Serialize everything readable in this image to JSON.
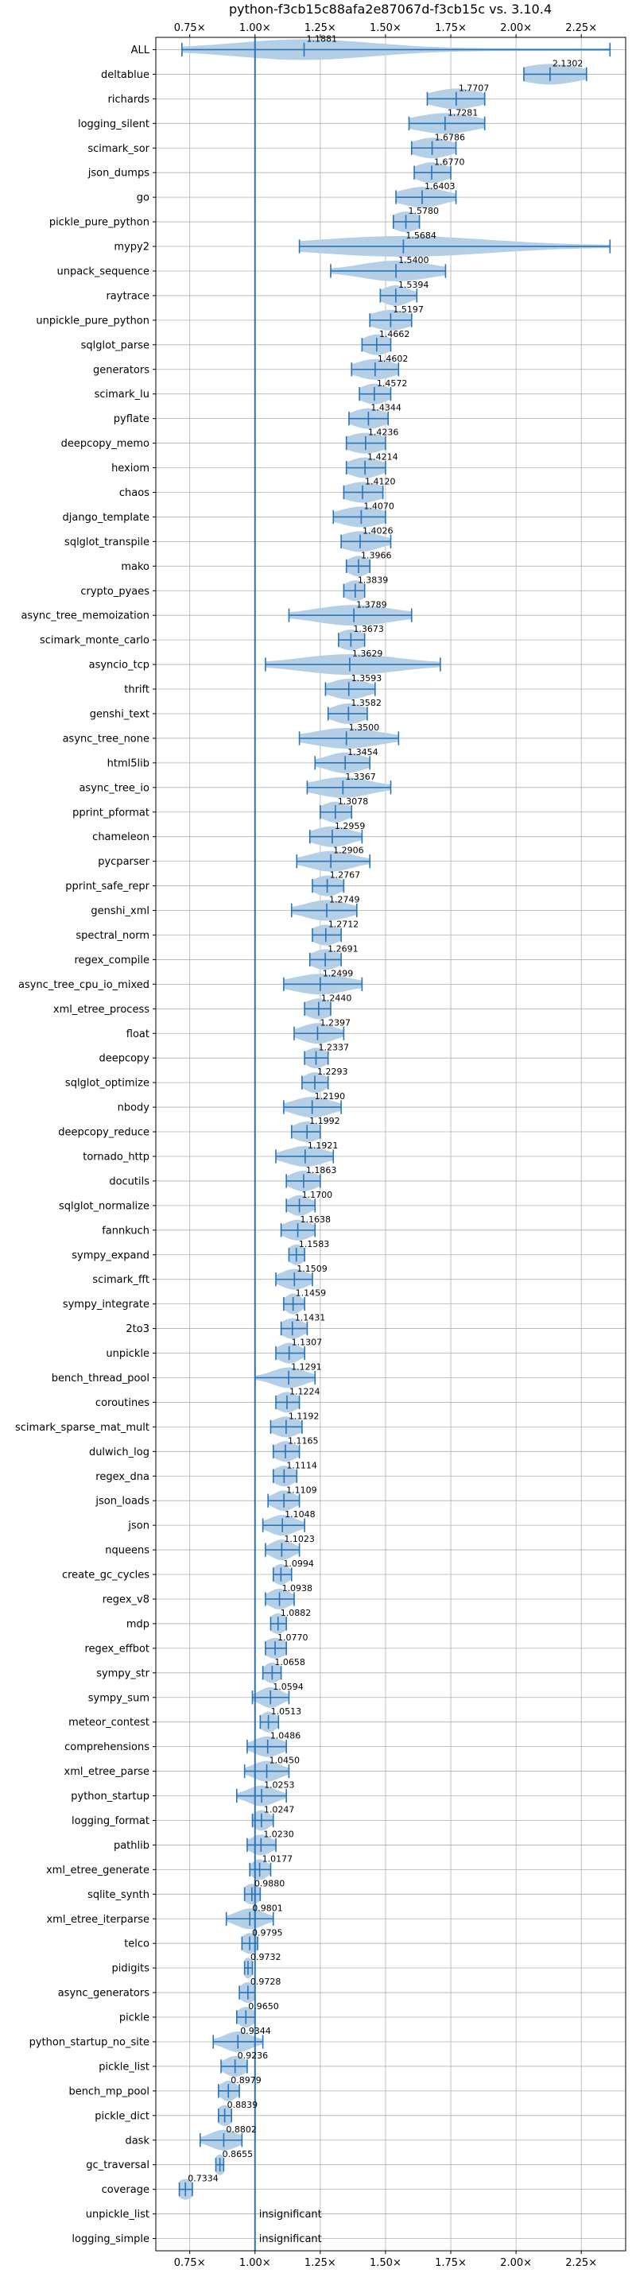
{
  "chart_data": {
    "type": "violin",
    "title": "python-f3cb15c88afa2e87067d-f3cb15c vs. 3.10.4",
    "xlabel": "",
    "ylabel": "",
    "xlim": [
      0.62,
      2.42
    ],
    "xticks": [
      0.75,
      1.0,
      1.25,
      1.5,
      1.75,
      2.0,
      2.25
    ],
    "xtick_labels": [
      "0.75×",
      "1.00×",
      "1.25×",
      "1.50×",
      "1.75×",
      "2.00×",
      "2.25×"
    ],
    "baseline": 1.0,
    "grid": true,
    "colors": {
      "violin": "#b4cfe6",
      "line": "#2a74b5",
      "grid": "#b0b0b0"
    },
    "rows": [
      {
        "name": "ALL",
        "label": "1.1881",
        "mean": 1.1881,
        "min": 0.72,
        "max": 2.36,
        "spread": 0.26
      },
      {
        "name": "deltablue",
        "label": "2.1302",
        "mean": 2.1302,
        "min": 2.03,
        "max": 2.27,
        "spread": 0.11
      },
      {
        "name": "richards",
        "label": "1.7707",
        "mean": 1.7707,
        "min": 1.66,
        "max": 1.88,
        "spread": 0.09
      },
      {
        "name": "logging_silent",
        "label": "1.7281",
        "mean": 1.7281,
        "min": 1.59,
        "max": 1.88,
        "spread": 0.11
      },
      {
        "name": "scimark_sor",
        "label": "1.6786",
        "mean": 1.6786,
        "min": 1.6,
        "max": 1.77,
        "spread": 0.07
      },
      {
        "name": "json_dumps",
        "label": "1.6770",
        "mean": 1.677,
        "min": 1.61,
        "max": 1.75,
        "spread": 0.06
      },
      {
        "name": "go",
        "label": "1.6403",
        "mean": 1.6403,
        "min": 1.54,
        "max": 1.77,
        "spread": 0.08
      },
      {
        "name": "pickle_pure_python",
        "label": "1.5780",
        "mean": 1.578,
        "min": 1.53,
        "max": 1.63,
        "spread": 0.05
      },
      {
        "name": "mypy2",
        "label": "1.5684",
        "mean": 1.5684,
        "min": 1.17,
        "max": 2.36,
        "spread": 0.32
      },
      {
        "name": "unpack_sequence",
        "label": "1.5400",
        "mean": 1.54,
        "min": 1.29,
        "max": 1.73,
        "spread": 0.13
      },
      {
        "name": "raytrace",
        "label": "1.5394",
        "mean": 1.5394,
        "min": 1.48,
        "max": 1.62,
        "spread": 0.05
      },
      {
        "name": "unpickle_pure_python",
        "label": "1.5197",
        "mean": 1.5197,
        "min": 1.44,
        "max": 1.6,
        "spread": 0.07
      },
      {
        "name": "sqlglot_parse",
        "label": "1.4662",
        "mean": 1.4662,
        "min": 1.41,
        "max": 1.52,
        "spread": 0.05
      },
      {
        "name": "generators",
        "label": "1.4602",
        "mean": 1.4602,
        "min": 1.37,
        "max": 1.55,
        "spread": 0.07
      },
      {
        "name": "scimark_lu",
        "label": "1.4572",
        "mean": 1.4572,
        "min": 1.4,
        "max": 1.52,
        "spread": 0.05
      },
      {
        "name": "pyflate",
        "label": "1.4344",
        "mean": 1.4344,
        "min": 1.36,
        "max": 1.51,
        "spread": 0.06
      },
      {
        "name": "deepcopy_memo",
        "label": "1.4236",
        "mean": 1.4236,
        "min": 1.35,
        "max": 1.5,
        "spread": 0.07
      },
      {
        "name": "hexiom",
        "label": "1.4214",
        "mean": 1.4214,
        "min": 1.35,
        "max": 1.5,
        "spread": 0.06
      },
      {
        "name": "chaos",
        "label": "1.4120",
        "mean": 1.412,
        "min": 1.34,
        "max": 1.49,
        "spread": 0.07
      },
      {
        "name": "django_template",
        "label": "1.4070",
        "mean": 1.407,
        "min": 1.3,
        "max": 1.5,
        "spread": 0.08
      },
      {
        "name": "sqlglot_transpile",
        "label": "1.4026",
        "mean": 1.4026,
        "min": 1.33,
        "max": 1.52,
        "spread": 0.07
      },
      {
        "name": "mako",
        "label": "1.3966",
        "mean": 1.3966,
        "min": 1.35,
        "max": 1.44,
        "spread": 0.04
      },
      {
        "name": "crypto_pyaes",
        "label": "1.3839",
        "mean": 1.3839,
        "min": 1.34,
        "max": 1.42,
        "spread": 0.04
      },
      {
        "name": "async_tree_memoization",
        "label": "1.3789",
        "mean": 1.3789,
        "min": 1.13,
        "max": 1.6,
        "spread": 0.14
      },
      {
        "name": "scimark_monte_carlo",
        "label": "1.3673",
        "mean": 1.3673,
        "min": 1.32,
        "max": 1.42,
        "spread": 0.05
      },
      {
        "name": "asyncio_tcp",
        "label": "1.3629",
        "mean": 1.3629,
        "min": 1.04,
        "max": 1.71,
        "spread": 0.18
      },
      {
        "name": "thrift",
        "label": "1.3593",
        "mean": 1.3593,
        "min": 1.27,
        "max": 1.46,
        "spread": 0.07
      },
      {
        "name": "genshi_text",
        "label": "1.3582",
        "mean": 1.3582,
        "min": 1.28,
        "max": 1.43,
        "spread": 0.06
      },
      {
        "name": "async_tree_none",
        "label": "1.3500",
        "mean": 1.35,
        "min": 1.17,
        "max": 1.55,
        "spread": 0.12
      },
      {
        "name": "html5lib",
        "label": "1.3454",
        "mean": 1.3454,
        "min": 1.23,
        "max": 1.44,
        "spread": 0.07
      },
      {
        "name": "async_tree_io",
        "label": "1.3367",
        "mean": 1.3367,
        "min": 1.2,
        "max": 1.52,
        "spread": 0.1
      },
      {
        "name": "pprint_pformat",
        "label": "1.3078",
        "mean": 1.3078,
        "min": 1.25,
        "max": 1.37,
        "spread": 0.05
      },
      {
        "name": "chameleon",
        "label": "1.2959",
        "mean": 1.2959,
        "min": 1.21,
        "max": 1.41,
        "spread": 0.07
      },
      {
        "name": "pycparser",
        "label": "1.2906",
        "mean": 1.2906,
        "min": 1.16,
        "max": 1.44,
        "spread": 0.08
      },
      {
        "name": "pprint_safe_repr",
        "label": "1.2767",
        "mean": 1.2767,
        "min": 1.22,
        "max": 1.34,
        "spread": 0.05
      },
      {
        "name": "genshi_xml",
        "label": "1.2749",
        "mean": 1.2749,
        "min": 1.14,
        "max": 1.39,
        "spread": 0.08
      },
      {
        "name": "spectral_norm",
        "label": "1.2712",
        "mean": 1.2712,
        "min": 1.22,
        "max": 1.33,
        "spread": 0.05
      },
      {
        "name": "regex_compile",
        "label": "1.2691",
        "mean": 1.2691,
        "min": 1.21,
        "max": 1.33,
        "spread": 0.05
      },
      {
        "name": "async_tree_cpu_io_mixed",
        "label": "1.2499",
        "mean": 1.2499,
        "min": 1.11,
        "max": 1.41,
        "spread": 0.1
      },
      {
        "name": "xml_etree_process",
        "label": "1.2440",
        "mean": 1.244,
        "min": 1.19,
        "max": 1.29,
        "spread": 0.05
      },
      {
        "name": "float",
        "label": "1.2397",
        "mean": 1.2397,
        "min": 1.15,
        "max": 1.34,
        "spread": 0.06
      },
      {
        "name": "deepcopy",
        "label": "1.2337",
        "mean": 1.2337,
        "min": 1.19,
        "max": 1.28,
        "spread": 0.04
      },
      {
        "name": "sqlglot_optimize",
        "label": "1.2293",
        "mean": 1.2293,
        "min": 1.18,
        "max": 1.28,
        "spread": 0.04
      },
      {
        "name": "nbody",
        "label": "1.2190",
        "mean": 1.219,
        "min": 1.11,
        "max": 1.33,
        "spread": 0.07
      },
      {
        "name": "deepcopy_reduce",
        "label": "1.1992",
        "mean": 1.1992,
        "min": 1.14,
        "max": 1.25,
        "spread": 0.05
      },
      {
        "name": "tornado_http",
        "label": "1.1921",
        "mean": 1.1921,
        "min": 1.08,
        "max": 1.3,
        "spread": 0.07
      },
      {
        "name": "docutils",
        "label": "1.1863",
        "mean": 1.1863,
        "min": 1.12,
        "max": 1.25,
        "spread": 0.05
      },
      {
        "name": "sqlglot_normalize",
        "label": "1.1700",
        "mean": 1.17,
        "min": 1.12,
        "max": 1.23,
        "spread": 0.04
      },
      {
        "name": "fannkuch",
        "label": "1.1638",
        "mean": 1.1638,
        "min": 1.1,
        "max": 1.23,
        "spread": 0.05
      },
      {
        "name": "sympy_expand",
        "label": "1.1583",
        "mean": 1.1583,
        "min": 1.13,
        "max": 1.19,
        "spread": 0.03
      },
      {
        "name": "scimark_fft",
        "label": "1.1509",
        "mean": 1.1509,
        "min": 1.08,
        "max": 1.22,
        "spread": 0.05
      },
      {
        "name": "sympy_integrate",
        "label": "1.1459",
        "mean": 1.1459,
        "min": 1.11,
        "max": 1.19,
        "spread": 0.03
      },
      {
        "name": "2to3",
        "label": "1.1431",
        "mean": 1.1431,
        "min": 1.1,
        "max": 1.2,
        "spread": 0.04
      },
      {
        "name": "unpickle",
        "label": "1.1307",
        "mean": 1.1307,
        "min": 1.08,
        "max": 1.19,
        "spread": 0.04
      },
      {
        "name": "bench_thread_pool",
        "label": "1.1291",
        "mean": 1.1291,
        "min": 1.0,
        "max": 1.23,
        "spread": 0.06
      },
      {
        "name": "coroutines",
        "label": "1.1224",
        "mean": 1.1224,
        "min": 1.08,
        "max": 1.17,
        "spread": 0.04
      },
      {
        "name": "scimark_sparse_mat_mult",
        "label": "1.1192",
        "mean": 1.1192,
        "min": 1.06,
        "max": 1.18,
        "spread": 0.05
      },
      {
        "name": "dulwich_log",
        "label": "1.1165",
        "mean": 1.1165,
        "min": 1.07,
        "max": 1.17,
        "spread": 0.04
      },
      {
        "name": "regex_dna",
        "label": "1.1114",
        "mean": 1.1114,
        "min": 1.07,
        "max": 1.16,
        "spread": 0.04
      },
      {
        "name": "json_loads",
        "label": "1.1109",
        "mean": 1.1109,
        "min": 1.05,
        "max": 1.17,
        "spread": 0.04
      },
      {
        "name": "json",
        "label": "1.1048",
        "mean": 1.1048,
        "min": 1.03,
        "max": 1.19,
        "spread": 0.05
      },
      {
        "name": "nqueens",
        "label": "1.1023",
        "mean": 1.1023,
        "min": 1.04,
        "max": 1.17,
        "spread": 0.04
      },
      {
        "name": "create_gc_cycles",
        "label": "1.0994",
        "mean": 1.0994,
        "min": 1.07,
        "max": 1.14,
        "spread": 0.03
      },
      {
        "name": "regex_v8",
        "label": "1.0938",
        "mean": 1.0938,
        "min": 1.04,
        "max": 1.15,
        "spread": 0.04
      },
      {
        "name": "mdp",
        "label": "1.0882",
        "mean": 1.0882,
        "min": 1.06,
        "max": 1.12,
        "spread": 0.03
      },
      {
        "name": "regex_effbot",
        "label": "1.0770",
        "mean": 1.077,
        "min": 1.04,
        "max": 1.12,
        "spread": 0.04
      },
      {
        "name": "sympy_str",
        "label": "1.0658",
        "mean": 1.0658,
        "min": 1.03,
        "max": 1.1,
        "spread": 0.03
      },
      {
        "name": "sympy_sum",
        "label": "1.0594",
        "mean": 1.0594,
        "min": 0.99,
        "max": 1.13,
        "spread": 0.04
      },
      {
        "name": "meteor_contest",
        "label": "1.0513",
        "mean": 1.0513,
        "min": 1.02,
        "max": 1.09,
        "spread": 0.03
      },
      {
        "name": "comprehensions",
        "label": "1.0486",
        "mean": 1.0486,
        "min": 0.97,
        "max": 1.12,
        "spread": 0.05
      },
      {
        "name": "xml_etree_parse",
        "label": "1.0450",
        "mean": 1.045,
        "min": 0.96,
        "max": 1.13,
        "spread": 0.05
      },
      {
        "name": "python_startup",
        "label": "1.0253",
        "mean": 1.0253,
        "min": 0.93,
        "max": 1.12,
        "spread": 0.05
      },
      {
        "name": "logging_format",
        "label": "1.0247",
        "mean": 1.0247,
        "min": 0.99,
        "max": 1.07,
        "spread": 0.03
      },
      {
        "name": "pathlib",
        "label": "1.0230",
        "mean": 1.023,
        "min": 0.97,
        "max": 1.08,
        "spread": 0.04
      },
      {
        "name": "xml_etree_generate",
        "label": "1.0177",
        "mean": 1.0177,
        "min": 0.98,
        "max": 1.06,
        "spread": 0.03
      },
      {
        "name": "sqlite_synth",
        "label": "0.9880",
        "mean": 0.988,
        "min": 0.96,
        "max": 1.02,
        "spread": 0.03
      },
      {
        "name": "xml_etree_iterparse",
        "label": "0.9801",
        "mean": 0.9801,
        "min": 0.89,
        "max": 1.07,
        "spread": 0.05
      },
      {
        "name": "telco",
        "label": "0.9795",
        "mean": 0.9795,
        "min": 0.95,
        "max": 1.01,
        "spread": 0.03
      },
      {
        "name": "pidigits",
        "label": "0.9732",
        "mean": 0.9732,
        "min": 0.96,
        "max": 0.99,
        "spread": 0.02
      },
      {
        "name": "async_generators",
        "label": "0.9728",
        "mean": 0.9728,
        "min": 0.94,
        "max": 1.0,
        "spread": 0.03
      },
      {
        "name": "pickle",
        "label": "0.9650",
        "mean": 0.965,
        "min": 0.93,
        "max": 1.0,
        "spread": 0.03
      },
      {
        "name": "python_startup_no_site",
        "label": "0.9344",
        "mean": 0.9344,
        "min": 0.84,
        "max": 1.03,
        "spread": 0.05
      },
      {
        "name": "pickle_list",
        "label": "0.9236",
        "mean": 0.9236,
        "min": 0.87,
        "max": 0.97,
        "spread": 0.04
      },
      {
        "name": "bench_mp_pool",
        "label": "0.8979",
        "mean": 0.8979,
        "min": 0.86,
        "max": 0.94,
        "spread": 0.03
      },
      {
        "name": "pickle_dict",
        "label": "0.8839",
        "mean": 0.8839,
        "min": 0.86,
        "max": 0.91,
        "spread": 0.03
      },
      {
        "name": "dask",
        "label": "0.8802",
        "mean": 0.8802,
        "min": 0.79,
        "max": 0.95,
        "spread": 0.05
      },
      {
        "name": "gc_traversal",
        "label": "0.8655",
        "mean": 0.8655,
        "min": 0.85,
        "max": 0.88,
        "spread": 0.02
      },
      {
        "name": "coverage",
        "label": "0.7334",
        "mean": 0.7334,
        "min": 0.71,
        "max": 0.76,
        "spread": 0.03
      },
      {
        "name": "unpickle_list",
        "label": "insignificant",
        "insignificant": true
      },
      {
        "name": "logging_simple",
        "label": "insignificant",
        "insignificant": true
      }
    ]
  }
}
